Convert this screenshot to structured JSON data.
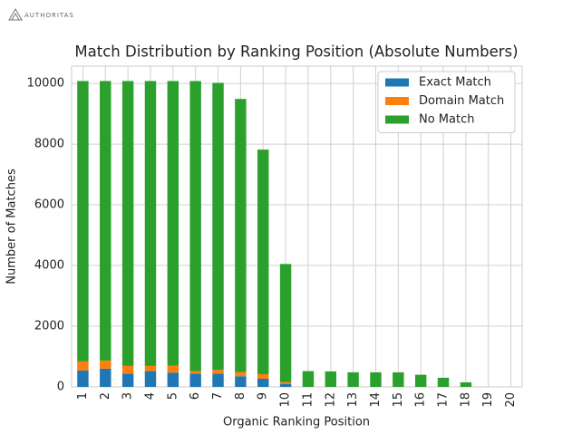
{
  "header": {
    "logo": "AUTHORITAS"
  },
  "chart_data": {
    "type": "stacked_bar",
    "title": "Match Distribution by Ranking Position (Absolute Numbers)",
    "x_label": "Organic Ranking Position",
    "y_label": "Number of Matches",
    "categories": [
      "1",
      "2",
      "3",
      "4",
      "5",
      "6",
      "7",
      "8",
      "9",
      "10",
      "11",
      "12",
      "13",
      "14",
      "15",
      "16",
      "17",
      "18",
      "19",
      "20"
    ],
    "series": [
      {
        "name": "Exact Match",
        "color": "#1f77b4",
        "values": [
          540,
          600,
          440,
          520,
          470,
          440,
          440,
          350,
          270,
          100,
          0,
          0,
          0,
          0,
          0,
          0,
          0,
          0,
          0,
          0
        ]
      },
      {
        "name": "Domain Match",
        "color": "#ff7f0e",
        "values": [
          300,
          270,
          250,
          170,
          230,
          80,
          120,
          140,
          150,
          60,
          0,
          0,
          0,
          0,
          0,
          0,
          0,
          0,
          0,
          0
        ]
      },
      {
        "name": "No Match",
        "color": "#2ca02c",
        "values": [
          9240,
          9210,
          9390,
          9390,
          9380,
          9560,
          9460,
          9000,
          7400,
          3890,
          520,
          510,
          480,
          480,
          480,
          400,
          300,
          150,
          0,
          0
        ]
      }
    ],
    "ylim": [
      0,
      10570
    ],
    "yticks": [
      0,
      2000,
      4000,
      6000,
      8000,
      10000
    ],
    "grid": true,
    "legend": "upper right"
  }
}
